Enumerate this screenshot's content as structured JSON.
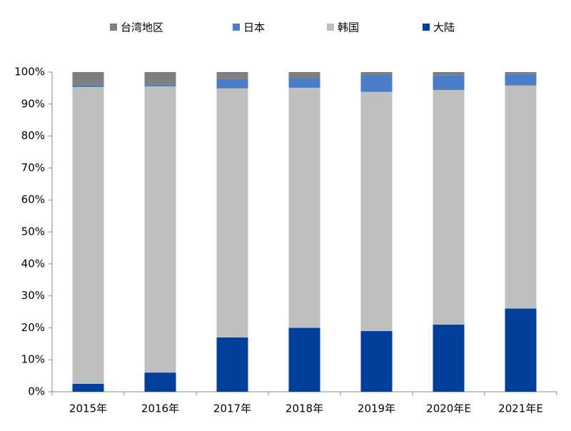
{
  "chart_data": {
    "type": "stacked_bar",
    "categories": [
      "2015年",
      "2016年",
      "2017年",
      "2018年",
      "2019年",
      "2020年E",
      "2021年E"
    ],
    "series": [
      {
        "name": "台湾地区",
        "color": "#7f7f7f",
        "values": [
          4,
          4,
          2.2,
          1.8,
          0.9,
          1.1,
          0.7
        ]
      },
      {
        "name": "日本",
        "color": "#4a7ec9",
        "values": [
          0.7,
          0.5,
          2.9,
          3.1,
          5.3,
          4.5,
          3.5
        ]
      },
      {
        "name": "韩国",
        "color": "#bfbfbf",
        "values": [
          92.8,
          89.5,
          77.9,
          75.1,
          74.8,
          73.4,
          69.8
        ]
      },
      {
        "name": "大陆",
        "color": "#003f9a",
        "values": [
          2.5,
          6,
          17,
          20,
          19,
          21,
          26
        ]
      }
    ],
    "ylim": [
      0,
      100
    ],
    "yticks": [
      {
        "value": 0,
        "label": "0%"
      },
      {
        "value": 10,
        "label": "10%"
      },
      {
        "value": 20,
        "label": "20%"
      },
      {
        "value": 30,
        "label": "30%"
      },
      {
        "value": 40,
        "label": "40%"
      },
      {
        "value": 50,
        "label": "50%"
      },
      {
        "value": 60,
        "label": "60%"
      },
      {
        "value": 70,
        "label": "70%"
      },
      {
        "value": 80,
        "label": "80%"
      },
      {
        "value": 90,
        "label": "90%"
      },
      {
        "value": 100,
        "label": "100%"
      }
    ],
    "grid": false
  }
}
